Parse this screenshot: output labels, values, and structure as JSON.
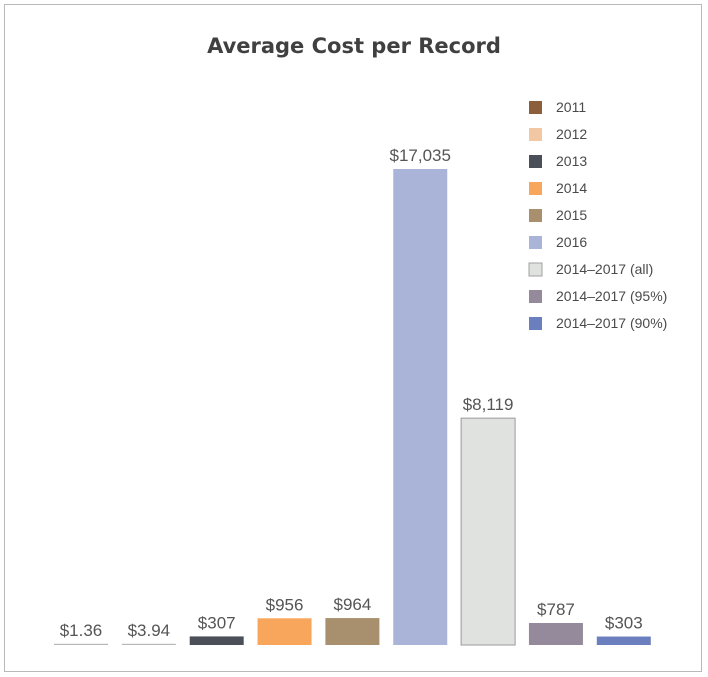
{
  "chart_data": {
    "type": "bar",
    "title": "Average Cost per Record",
    "categories": [
      "2011",
      "2012",
      "2013",
      "2014",
      "2015",
      "2016",
      "2014–2017 (all)",
      "2014–2017 (95%)",
      "2014–2017 (90%)"
    ],
    "values": [
      1.36,
      3.94,
      307,
      956,
      964,
      17035,
      8119,
      787,
      303
    ],
    "value_labels": [
      "$1.36",
      "$3.94",
      "$307",
      "$956",
      "$964",
      "$17,035",
      "$8,119",
      "$787",
      "$303"
    ],
    "colors": [
      "#8b5e3c",
      "#f2c8a4",
      "#4b4f57",
      "#f7a65b",
      "#a8906f",
      "#aab3d8",
      "#e0e2e0",
      "#948a9b",
      "#6b7fbe"
    ],
    "ylim": [
      0,
      17035
    ],
    "legend_position": "top-right",
    "grid": false,
    "xlabel": "",
    "ylabel": ""
  }
}
